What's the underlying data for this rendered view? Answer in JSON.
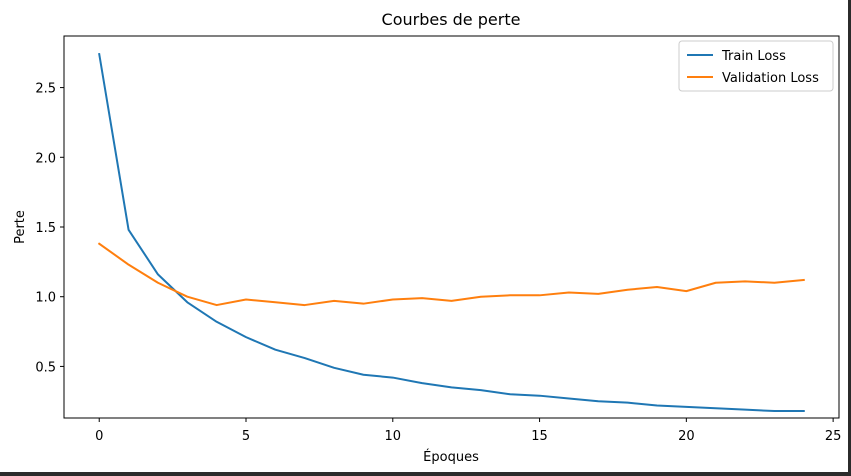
{
  "chart_data": {
    "type": "line",
    "title": "Courbes de perte",
    "xlabel": "Époques",
    "ylabel": "Perte",
    "xlim": [
      -1.2,
      25.2
    ],
    "ylim": [
      0.13,
      2.87
    ],
    "xticks": [
      0,
      5,
      10,
      15,
      20,
      25
    ],
    "yticks": [
      0.5,
      1.0,
      1.5,
      2.0,
      2.5
    ],
    "xtick_labels": [
      "0",
      "5",
      "10",
      "15",
      "20",
      "25"
    ],
    "ytick_labels": [
      "0.5",
      "1.0",
      "1.5",
      "2.0",
      "2.5"
    ],
    "grid": false,
    "legend_position": "top-right",
    "x": [
      0,
      1,
      2,
      3,
      4,
      5,
      6,
      7,
      8,
      9,
      10,
      11,
      12,
      13,
      14,
      15,
      16,
      17,
      18,
      19,
      20,
      21,
      22,
      23,
      24
    ],
    "series": [
      {
        "name": "Train Loss",
        "color": "#1f77b4",
        "values": [
          2.74,
          1.48,
          1.16,
          0.96,
          0.82,
          0.71,
          0.62,
          0.56,
          0.49,
          0.44,
          0.42,
          0.38,
          0.35,
          0.33,
          0.3,
          0.29,
          0.27,
          0.25,
          0.24,
          0.22,
          0.21,
          0.2,
          0.19,
          0.18,
          0.18
        ]
      },
      {
        "name": "Validation Loss",
        "color": "#ff7f0e",
        "values": [
          1.38,
          1.23,
          1.1,
          1.0,
          0.94,
          0.98,
          0.96,
          0.94,
          0.97,
          0.95,
          0.98,
          0.99,
          0.97,
          1.0,
          1.01,
          1.01,
          1.03,
          1.02,
          1.05,
          1.07,
          1.04,
          1.1,
          1.11,
          1.1,
          1.12
        ]
      }
    ]
  }
}
